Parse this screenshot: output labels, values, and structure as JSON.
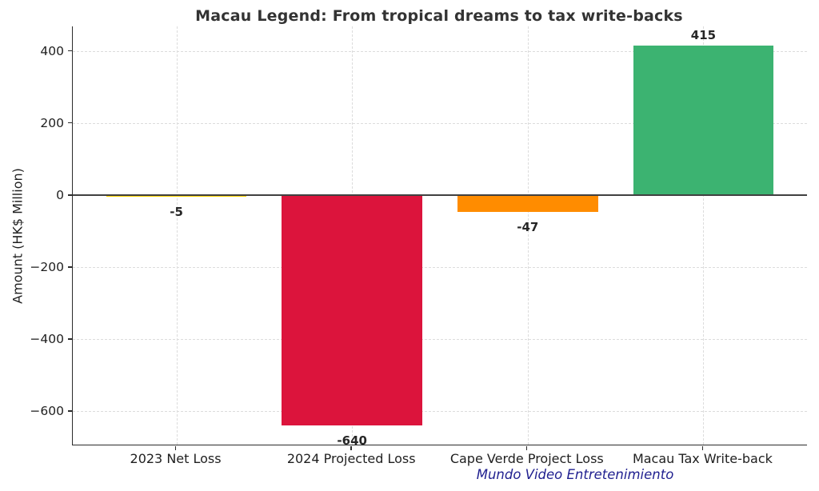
{
  "footer": "Mundo Video Entretenimiento",
  "colors": {
    "background": "#ffffff",
    "grid": "#dcdcdc",
    "zero_line": "#404040",
    "spine": "#2b2b2b",
    "title_text": "#333333",
    "tick_text": "#1f1f1f",
    "bar_label_text": "#262626",
    "footer_text": "#1f1f8f"
  },
  "chart_data": {
    "type": "bar",
    "title": "Macau Legend: From tropical dreams to tax write-backs",
    "xlabel": "",
    "ylabel": "Amount (HK$ Million)",
    "categories": [
      "2023 Net Loss",
      "2024 Projected Loss",
      "Cape Verde Project Loss",
      "Macau Tax Write-back"
    ],
    "values": [
      -5,
      -640,
      -47,
      415
    ],
    "bar_labels": [
      "-5",
      "-640",
      "-47",
      "415"
    ],
    "bar_colors": [
      "#FFD700",
      "#DC143C",
      "#FF8C00",
      "#3CB371"
    ],
    "yticks": [
      400,
      200,
      0,
      -200,
      -400,
      -600
    ],
    "ytick_labels": [
      "400",
      "200",
      "0",
      "−200",
      "−400",
      "−600"
    ],
    "ylim": [
      -693,
      468
    ],
    "grid": "dashed",
    "zero_line": true,
    "legend": null,
    "units": "HK$ Million"
  }
}
